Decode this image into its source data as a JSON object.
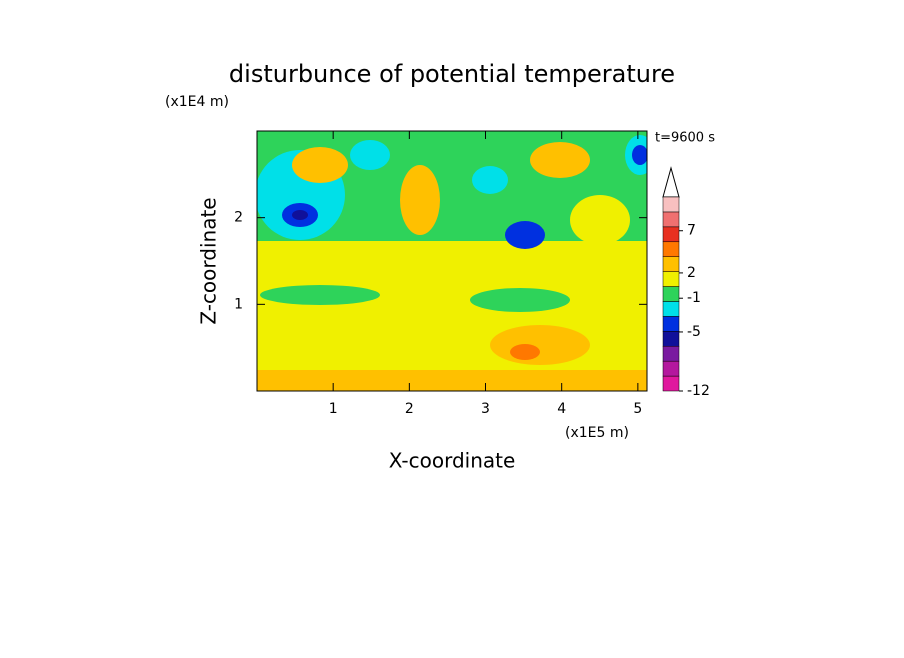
{
  "chart_data": {
    "type": "contour",
    "title": "disturbunce of potential temperature",
    "x_label": "X-coordinate",
    "x_unit": "(x1E5 m)",
    "y_label": "Z-coordinate",
    "y_unit": "(x1E4 m)",
    "annotation": "t=9600 s",
    "xlim": [
      0,
      5.12
    ],
    "xticks": [
      1,
      2,
      3,
      4,
      5
    ],
    "ylim": [
      0,
      3.0
    ],
    "yticks": [
      1,
      2
    ],
    "colorbar": {
      "lim": [
        -12,
        11
      ],
      "ticks": [
        -12,
        -5,
        -1,
        2,
        7
      ],
      "colors": [
        "#e0189e",
        "#b4189e",
        "#7a1aa0",
        "#10109a",
        "#0030e0",
        "#00e0e8",
        "#2ed35a",
        "#f0f000",
        "#ffc000",
        "#ff7800",
        "#e83020",
        "#f07070",
        "#f8c0c0"
      ]
    }
  }
}
